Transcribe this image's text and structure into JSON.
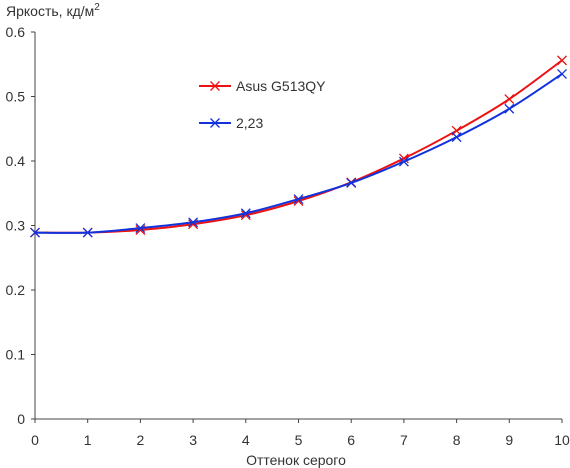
{
  "chart_data": {
    "type": "line",
    "ylabel": "Яркость, кд/м",
    "ylabel_sup": "2",
    "xlabel": "Оттенок серого",
    "xlim": [
      0,
      10
    ],
    "ylim": [
      0,
      0.6
    ],
    "x_ticks": [
      0,
      1,
      2,
      3,
      4,
      5,
      6,
      7,
      8,
      9,
      10
    ],
    "y_ticks": [
      "0",
      "0.1",
      "0.2",
      "0.3",
      "0.4",
      "0.5",
      "0.6"
    ],
    "y_tick_values": [
      0,
      0.1,
      0.2,
      0.3,
      0.4,
      0.5,
      0.6
    ],
    "grid": false,
    "legend_position": "top-center",
    "x": [
      0,
      1,
      2,
      3,
      4,
      5,
      6,
      7,
      8,
      9,
      10
    ],
    "series": [
      {
        "name": "Asus G513QY",
        "color": "#ee1111",
        "values": [
          0.289,
          0.289,
          0.293,
          0.302,
          0.316,
          0.338,
          0.367,
          0.404,
          0.447,
          0.496,
          0.556
        ]
      },
      {
        "name": "2,23",
        "color": "#1133dd",
        "values": [
          0.289,
          0.289,
          0.296,
          0.305,
          0.319,
          0.341,
          0.366,
          0.399,
          0.437,
          0.481,
          0.535
        ]
      }
    ]
  }
}
